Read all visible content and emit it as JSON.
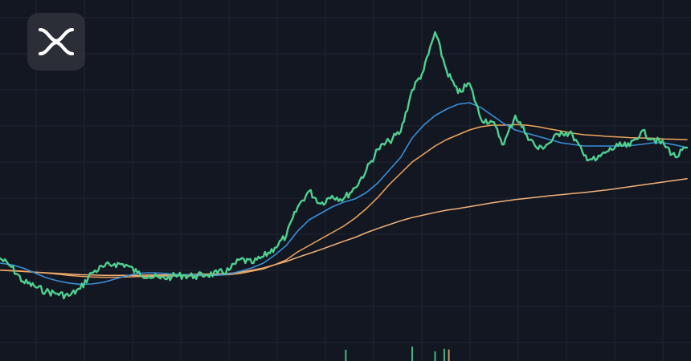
{
  "brand": {
    "logo_icon": "xrp-logo-icon",
    "tile_color": "#2b2e37",
    "logo_color": "#ffffff"
  },
  "theme": {
    "background": "#131722",
    "grid_color": "#1f2633",
    "price_color": "#4fd08f",
    "ma_fast_color": "#3a8fd9",
    "ma_mid_color": "#f0a65e",
    "ma_slow_color": "#f2b27a",
    "volume_color": "#4fd08f",
    "volume_alt_color": "#e8b07a"
  },
  "chart_data": {
    "type": "line",
    "title": "",
    "xlabel": "",
    "ylabel": "",
    "grid": true,
    "x": [
      0,
      5,
      10,
      15,
      20,
      25,
      30,
      35,
      40,
      45,
      50,
      55,
      60,
      65,
      70,
      75,
      80,
      85,
      90,
      95,
      100,
      105,
      110,
      115,
      120,
      125,
      130,
      135,
      140,
      145,
      150,
      155,
      160,
      165,
      170,
      175,
      180,
      185,
      190,
      195,
      200,
      205,
      210,
      215,
      220,
      225,
      230,
      235,
      240,
      245,
      250,
      255,
      260,
      265,
      270,
      275,
      280,
      285,
      290,
      295,
      300
    ],
    "ylim": [
      0,
      100
    ],
    "series": [
      {
        "key": "price",
        "values": [
          24.5,
          21.8,
          17.3,
          15.8,
          14.2,
          13.5,
          12.8,
          15.0,
          20.0,
          21.8,
          22.8,
          22.5,
          20.0,
          19.0,
          18.2,
          18.8,
          19.2,
          18.9,
          19.4,
          19.8,
          20.8,
          24.2,
          23.0,
          25.0,
          27.8,
          31.5,
          40.5,
          45.5,
          41.5,
          44.0,
          43.0,
          46.5,
          52.0,
          58.5,
          61.0,
          64.0,
          77.0,
          83.0,
          95.0,
          83.0,
          76.0,
          79.0,
          68.0,
          67.0,
          60.0,
          69.0,
          63.0,
          58.5,
          60.5,
          64.0,
          63.0,
          56.5,
          55.0,
          57.8,
          59.5,
          59.5,
          64.0,
          61.8,
          60.0,
          56.0,
          59.0
        ]
      },
      {
        "key": "ma-fast",
        "values": [
          23.0,
          22.5,
          21.5,
          20.0,
          18.5,
          17.5,
          16.8,
          16.4,
          16.5,
          17.0,
          18.0,
          19.0,
          19.8,
          20.0,
          19.9,
          19.6,
          19.4,
          19.3,
          19.2,
          19.2,
          19.6,
          20.5,
          21.5,
          23.0,
          25.5,
          28.5,
          33.0,
          36.5,
          38.5,
          40.5,
          42.0,
          43.0,
          45.0,
          48.0,
          52.0,
          56.0,
          62.0,
          66.0,
          69.0,
          71.0,
          72.5,
          73.0,
          71.5,
          69.0,
          66.5,
          64.5,
          63.5,
          62.5,
          61.5,
          60.5,
          60.0,
          59.5,
          59.5,
          59.5,
          59.5,
          59.6,
          60.0,
          60.5,
          60.5,
          59.8,
          59.0
        ]
      },
      {
        "key": "ma-mid",
        "values": [
          20.8,
          20.7,
          20.5,
          20.2,
          19.9,
          19.6,
          19.2,
          18.9,
          18.7,
          18.6,
          18.6,
          18.7,
          18.8,
          18.9,
          19.0,
          19.0,
          19.1,
          19.1,
          19.2,
          19.3,
          19.4,
          19.8,
          20.5,
          21.2,
          22.5,
          24.0,
          26.5,
          28.5,
          30.5,
          32.5,
          34.5,
          37.0,
          40.0,
          43.5,
          47.5,
          51.0,
          54.5,
          57.0,
          59.5,
          61.5,
          63.0,
          64.5,
          65.5,
          66.0,
          66.0,
          66.2,
          66.0,
          65.5,
          64.8,
          64.2,
          63.5,
          63.0,
          62.8,
          62.5,
          62.3,
          62.1,
          62.0,
          61.9,
          61.7,
          61.6,
          61.5
        ]
      },
      {
        "key": "ma-slow",
        "values": [
          20.8,
          20.6,
          20.4,
          20.2,
          20.0,
          19.8,
          19.6,
          19.4,
          19.3,
          19.2,
          19.2,
          19.2,
          19.2,
          19.3,
          19.3,
          19.4,
          19.4,
          19.5,
          19.6,
          19.6,
          19.8,
          20.2,
          20.8,
          21.5,
          22.5,
          23.5,
          24.8,
          26.0,
          27.2,
          28.5,
          29.8,
          31.0,
          32.5,
          33.8,
          35.0,
          36.2,
          37.2,
          38.0,
          38.8,
          39.5,
          40.0,
          40.6,
          41.2,
          41.8,
          42.3,
          42.8,
          43.2,
          43.6,
          44.0,
          44.3,
          44.7,
          45.0,
          45.4,
          45.8,
          46.3,
          46.8,
          47.3,
          47.8,
          48.3,
          48.8,
          49.3
        ]
      }
    ],
    "volume": [
      {
        "x": 151,
        "value": 3.5,
        "alt": false
      },
      {
        "x": 180,
        "value": 4.5,
        "alt": false
      },
      {
        "x": 190,
        "value": 3.0,
        "alt": false
      },
      {
        "x": 194,
        "value": 3.8,
        "alt": false
      },
      {
        "x": 196,
        "value": 3.6,
        "alt": true
      }
    ]
  }
}
